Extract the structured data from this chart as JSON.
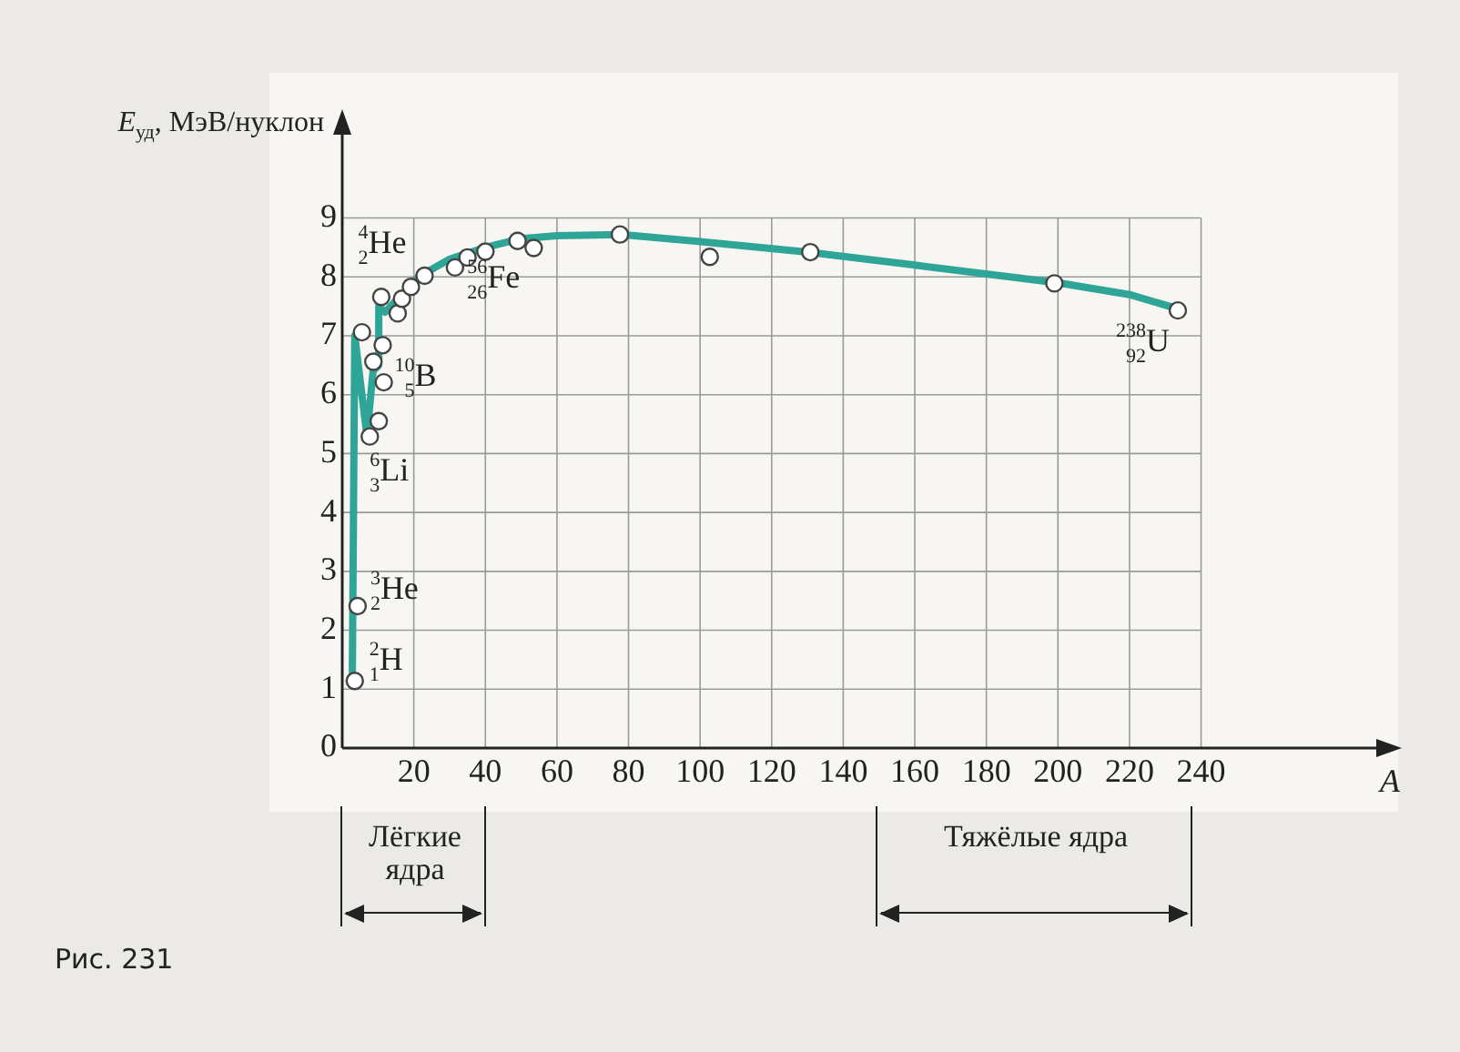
{
  "chart_data": {
    "type": "scatter",
    "ylabel": "E$_{уд}$, МэВ/нуклон",
    "xlabel": "A",
    "xlim": [
      0,
      292
    ],
    "ylim": [
      0,
      10.6
    ],
    "xticks": [
      20,
      40,
      60,
      80,
      100,
      120,
      140,
      160,
      180,
      200,
      220,
      240
    ],
    "yticks": [
      0,
      1,
      2,
      3,
      4,
      5,
      6,
      7,
      8,
      9
    ],
    "grid": true,
    "legend": false,
    "series": [
      {
        "type": "line",
        "color": "#2fa597",
        "marker": "none",
        "x": [
          2.8,
          3.5,
          6.9,
          8.6,
          10.2,
          10.2,
          12,
          21.3,
          30,
          40,
          50,
          60,
          78,
          100,
          130,
          160,
          200,
          220,
          234
        ],
        "values": [
          1.1,
          7.0,
          5.3,
          6.4,
          6.5,
          7.5,
          7.4,
          8.0,
          8.3,
          8.5,
          8.65,
          8.7,
          8.72,
          8.6,
          8.42,
          8.2,
          7.9,
          7.7,
          7.45
        ]
      },
      {
        "color": "#444444",
        "marker": "circle",
        "x": [
          3.5,
          4.3,
          5.5,
          7.7,
          10.2,
          8.7,
          11.6,
          11.3,
          10.9,
          15.5,
          16.7,
          19.2,
          23,
          31.5,
          35,
          40,
          49,
          53.5,
          77.6,
          102.7,
          130.8,
          199,
          233.5
        ],
        "values": [
          1.14,
          2.41,
          7.06,
          5.29,
          5.55,
          6.56,
          6.21,
          6.84,
          7.66,
          7.38,
          7.63,
          7.83,
          8.02,
          8.16,
          8.33,
          8.43,
          8.61,
          8.49,
          8.72,
          8.34,
          8.42,
          7.89,
          7.43
        ]
      }
    ],
    "annotations": [
      {
        "text": "$^{2}$$_{1}$H",
        "x": 3.5,
        "y": 1.14
      },
      {
        "text": "$^{3}$$_{2}$He",
        "x": 4.3,
        "y": 2.41
      },
      {
        "text": "$^{4}$$_{2}$He",
        "x": 5.5,
        "y": 7.06
      },
      {
        "text": "$^{6}$$_{3}$Li",
        "x": 7.7,
        "y": 5.29
      },
      {
        "text": "$^{10}$$_{5}$B",
        "x": 11.6,
        "y": 6.21
      },
      {
        "text": "$^{56}$$_{26}$Fe",
        "x": 40,
        "y": 8.43
      },
      {
        "text": "$^{238}$$_{92}$U",
        "x": 233.5,
        "y": 7.43
      },
      "Лёгкие ядра",
      "Тяжёлые ядра",
      "Рис. 231"
    ]
  }
}
